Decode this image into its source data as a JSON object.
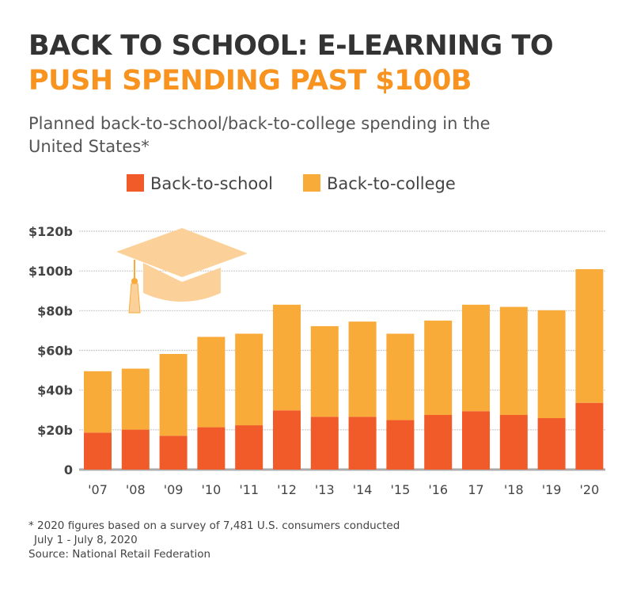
{
  "title_line1": "BACK TO SCHOOL: E-LEARNING TO",
  "title_line2": "PUSH SPENDING PAST $100B",
  "subtitle": "Planned back-to-school/back-to-college spending in the United States*",
  "footnote_line1": "* 2020 figures based on a survey of 7,481 U.S. consumers conducted",
  "footnote_line2": "July 1 - July 8, 2020",
  "source": "Source: National Retail Federation",
  "colors": {
    "title_dark": "#333333",
    "title_accent": "#f7931e",
    "school": "#f15a29",
    "college": "#f9ab3a",
    "cap": "#fcd199"
  },
  "chart_data": {
    "type": "bar",
    "stacked": true,
    "categories": [
      "'07",
      "'08",
      "'09",
      "'10",
      "'11",
      "'12",
      "'13",
      "'14",
      "'15",
      "'16",
      "17",
      "'18",
      "'19",
      "'20"
    ],
    "series": [
      {
        "name": "Back-to-school",
        "values": [
          18.6,
          20.1,
          17.0,
          21.3,
          22.3,
          29.8,
          26.6,
          26.6,
          24.9,
          27.5,
          29.4,
          27.5,
          25.9,
          33.6
        ]
      },
      {
        "name": "Back-to-college",
        "values": [
          30.9,
          30.7,
          41.2,
          45.5,
          46.1,
          53.2,
          45.6,
          47.9,
          43.5,
          47.5,
          53.6,
          54.4,
          54.3,
          67.3
        ]
      }
    ],
    "ylim": [
      0,
      120
    ],
    "yticks": [
      0,
      20,
      40,
      60,
      80,
      100,
      120
    ],
    "ytick_labels": [
      "0",
      "$20b",
      "$40b",
      "$60b",
      "$80b",
      "$100b",
      "$120b"
    ],
    "grid": true,
    "legend_position": "top",
    "unit": "billion USD"
  }
}
